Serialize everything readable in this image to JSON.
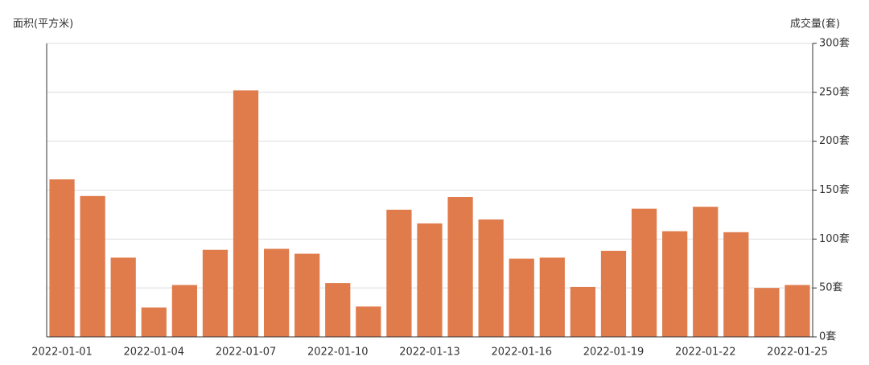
{
  "chart_data": {
    "type": "bar",
    "y_title": "面积(平方米)",
    "y2_title": "成交量(套)",
    "categories": [
      "2022-01-01",
      null,
      null,
      "2022-01-04",
      null,
      null,
      "2022-01-07",
      null,
      null,
      "2022-01-10",
      null,
      null,
      "2022-01-13",
      null,
      null,
      "2022-01-16",
      null,
      null,
      "2022-01-19",
      null,
      null,
      "2022-01-22",
      null,
      null,
      "2022-01-25"
    ],
    "series": [
      {
        "name": "成交量",
        "color": "#e07b4c",
        "axis": "y2",
        "values": [
          161,
          144,
          81,
          30,
          53,
          89,
          252,
          90,
          85,
          55,
          31,
          130,
          116,
          143,
          120,
          80,
          81,
          51,
          88,
          131,
          108,
          133,
          107,
          50,
          53
        ]
      }
    ],
    "y2lim": [
      0,
      300
    ],
    "y2ticks": [
      {
        "value": 0,
        "label": "0套"
      },
      {
        "value": 50,
        "label": "50套"
      },
      {
        "value": 100,
        "label": "100套"
      },
      {
        "value": 150,
        "label": "150套"
      },
      {
        "value": 200,
        "label": "200套"
      },
      {
        "value": 250,
        "label": "250套"
      },
      {
        "value": 300,
        "label": "300套"
      }
    ],
    "grid": true
  }
}
